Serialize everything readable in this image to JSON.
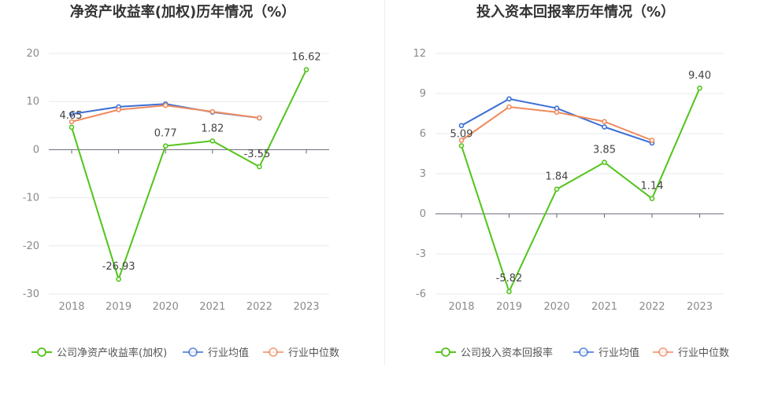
{
  "colors": {
    "company": "#52c41a",
    "industry_avg": "#3b6fd6",
    "industry_median": "#f08a5d"
  },
  "chart_data": [
    {
      "type": "line",
      "title": "净资产收益率(加权)历年情况（%）",
      "categories": [
        "2018",
        "2019",
        "2020",
        "2021",
        "2022",
        "2023"
      ],
      "yticks": [
        20,
        10,
        0,
        -10,
        -20,
        -30
      ],
      "ylim": [
        -30,
        20
      ],
      "series": [
        {
          "name": "公司净资产收益率(加权)",
          "values": [
            4.65,
            -26.93,
            0.77,
            1.82,
            -3.55,
            16.62
          ],
          "labels": [
            "4.65",
            "-26.93",
            "0.77",
            "1.82",
            "-3.55",
            "16.62"
          ]
        },
        {
          "name": "行业均值",
          "values": [
            7.4,
            8.9,
            9.5,
            7.8,
            6.6,
            null
          ]
        },
        {
          "name": "行业中位数",
          "values": [
            5.8,
            8.3,
            9.2,
            7.9,
            6.6,
            null
          ]
        }
      ],
      "grid": true,
      "legend": "bottom"
    },
    {
      "type": "line",
      "title": "投入资本回报率历年情况（%）",
      "categories": [
        "2018",
        "2019",
        "2020",
        "2021",
        "2022",
        "2023"
      ],
      "yticks": [
        12,
        9,
        6,
        3,
        0,
        -3,
        -6
      ],
      "ylim": [
        -6,
        12
      ],
      "series": [
        {
          "name": "公司投入资本回报率",
          "values": [
            5.09,
            -5.82,
            1.84,
            3.85,
            1.14,
            9.4
          ],
          "labels": [
            "5.09",
            "-5.82",
            "1.84",
            "3.85",
            "1.14",
            "9.40"
          ]
        },
        {
          "name": "行业均值",
          "values": [
            6.6,
            8.6,
            7.9,
            6.5,
            5.3,
            null
          ]
        },
        {
          "name": "行业中位数",
          "values": [
            5.5,
            8.0,
            7.6,
            6.9,
            5.5,
            null
          ]
        }
      ],
      "grid": true,
      "legend": "bottom"
    }
  ]
}
